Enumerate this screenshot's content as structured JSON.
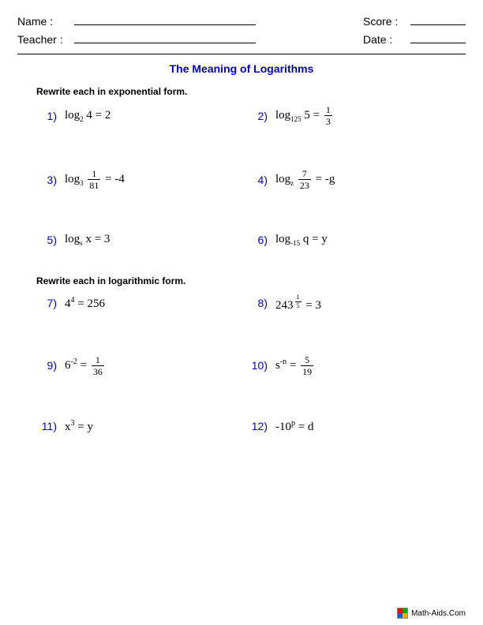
{
  "header": {
    "name_label": "Name :",
    "teacher_label": "Teacher :",
    "score_label": "Score :",
    "date_label": "Date :"
  },
  "title": "The Meaning of Logarithms",
  "section1": {
    "heading": "Rewrite each in exponential form.",
    "problems": [
      {
        "num": "1)",
        "html": "log<span class='sub'>2</span>&nbsp;4 = 2"
      },
      {
        "num": "2)",
        "html": "log<span class='sub'>125</span>&nbsp;5 = <span class='frac'><span class='fn'>1</span><span class='fd'>3</span></span>"
      },
      {
        "num": "3)",
        "html": "log<span class='sub'>3</span>&nbsp;<span class='frac'><span class='fn'>1</span><span class='fd'>81</span></span> = -4"
      },
      {
        "num": "4)",
        "html": "log<span class='sub'>z</span>&nbsp;<span class='frac'><span class='fn'>7</span><span class='fd'>23</span></span> = -g"
      },
      {
        "num": "5)",
        "html": "log<span class='sub'>s</span>&nbsp;x = 3"
      },
      {
        "num": "6)",
        "html": "log<span class='sub'>-15</span>&nbsp;q = y"
      }
    ]
  },
  "section2": {
    "heading": "Rewrite each in logarithmic form.",
    "problems": [
      {
        "num": "7)",
        "html": "4<span class='sup'>4</span> = 256"
      },
      {
        "num": "8)",
        "html": "243<span class='sup'><span class='frac' style='font-size:8px'><span class='fn'>1</span><span class='fd'>5</span></span></span> = 3"
      },
      {
        "num": "9)",
        "html": "6<span class='sup'>-2</span> = <span class='frac'><span class='fn'>1</span><span class='fd'>36</span></span>"
      },
      {
        "num": "10)",
        "html": "s<span class='sup'>-n</span> = <span class='frac'><span class='fn'>5</span><span class='fd'>19</span></span>"
      },
      {
        "num": "11)",
        "html": "x<span class='sup'>3</span> = y"
      },
      {
        "num": "12)",
        "html": "-10<span class='sup'>p</span> = d"
      }
    ]
  },
  "footer": {
    "text": "Math-Aids.Com"
  },
  "colors": {
    "title_color": "#0000cc",
    "number_color": "#0000cc",
    "text_color": "#000000",
    "background": "#ffffff"
  }
}
